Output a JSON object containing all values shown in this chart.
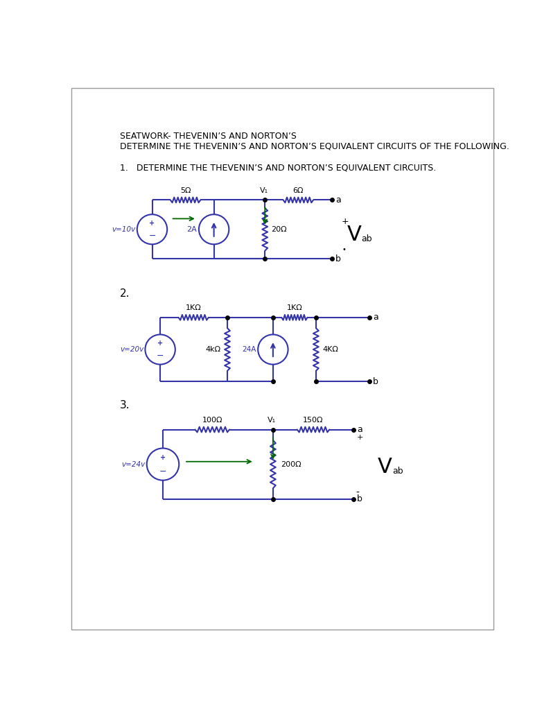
{
  "title1": "SEATWORK- THEVENIN’S AND NORTON’S",
  "title2": "DETERMINE THE THEVENIN’S AND NORTON’S EQUIVALENT CIRCUITS OF THE FOLLOWING.",
  "q1_label": "1.   DETERMINE THE THEVENIN’S AND NORTON’S EQUIVALENT CIRCUITS.",
  "q2_label": "2.",
  "q3_label": "3.",
  "circuit_color": "#3333AA",
  "green_color": "#006600",
  "black": "#000000",
  "bg_color": "#ffffff",
  "border_color": "#aaaaaa"
}
